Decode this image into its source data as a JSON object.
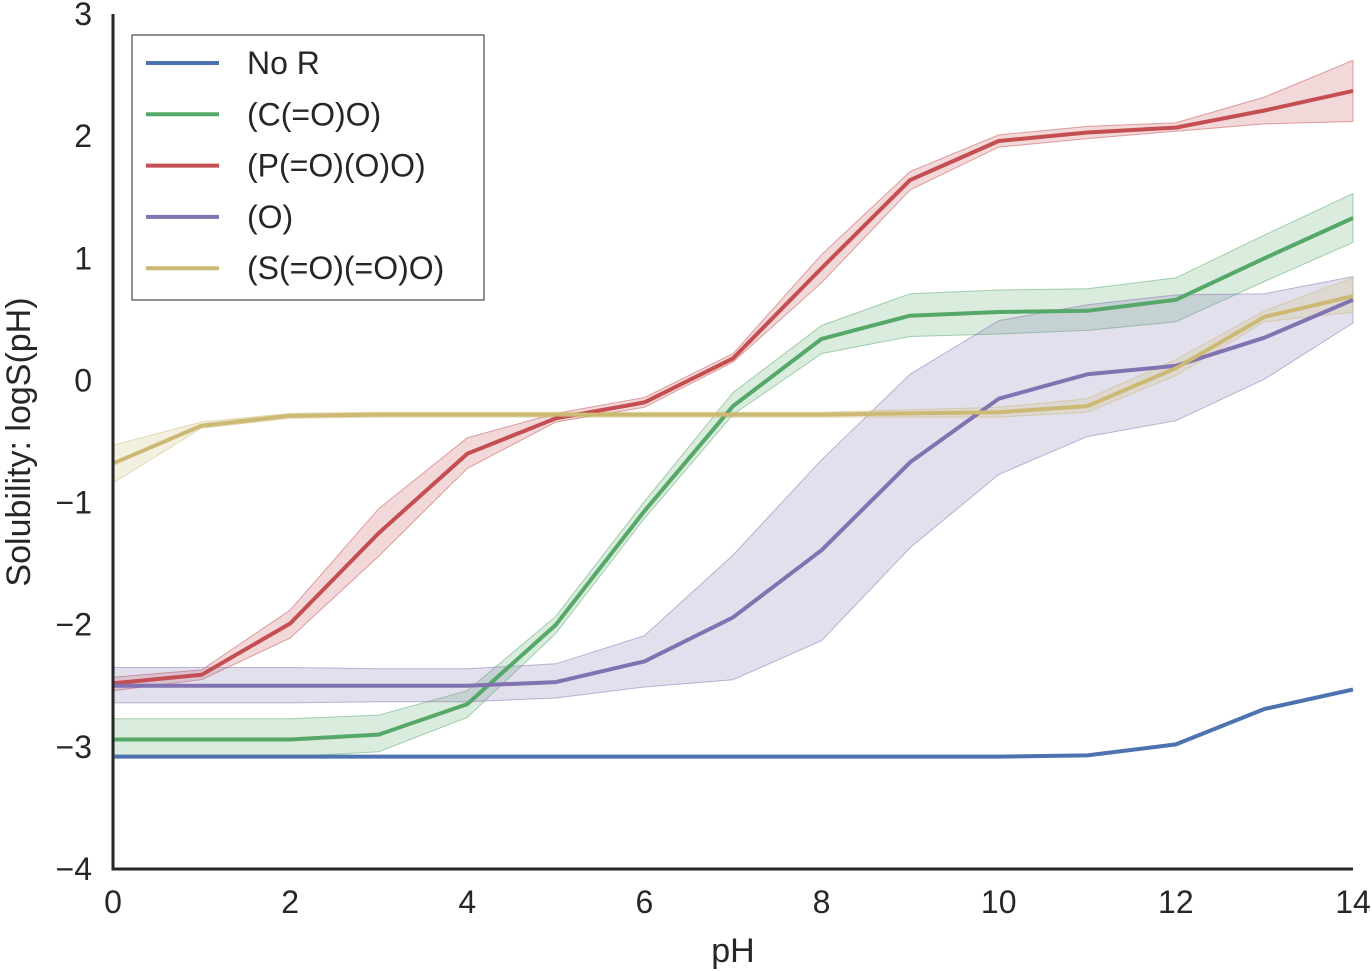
{
  "chart_data": {
    "type": "line",
    "title": "",
    "xlabel": "pH",
    "ylabel": "Solubility: logS(pH)",
    "xlim": [
      0,
      14
    ],
    "ylim": [
      -4,
      3
    ],
    "xticks": [
      0,
      2,
      4,
      6,
      8,
      10,
      12,
      14
    ],
    "yticks": [
      -4,
      -3,
      -2,
      -1,
      0,
      1,
      2,
      3
    ],
    "xtick_labels": [
      "0",
      "2",
      "4",
      "6",
      "8",
      "10",
      "12",
      "14"
    ],
    "ytick_labels": [
      "−4",
      "−3",
      "−2",
      "−1",
      "0",
      "1",
      "2",
      "3"
    ],
    "grid": false,
    "legend_position": "top-left",
    "x": [
      0,
      1,
      2,
      3,
      4,
      5,
      6,
      7,
      8,
      9,
      10,
      11,
      12,
      13,
      14
    ],
    "series": [
      {
        "name": "No R",
        "color": "#4c72b0",
        "values": [
          -3.08,
          -3.08,
          -3.08,
          -3.08,
          -3.08,
          -3.08,
          -3.08,
          -3.08,
          -3.08,
          -3.08,
          -3.08,
          -3.07,
          -2.98,
          -2.69,
          -2.53
        ]
      },
      {
        "name": "(C(=O)O)",
        "color": "#55a868",
        "values": [
          -2.94,
          -2.94,
          -2.94,
          -2.9,
          -2.65,
          -2.0,
          -1.07,
          -0.21,
          0.34,
          0.53,
          0.56,
          0.57,
          0.66,
          1.0,
          1.33
        ],
        "lower": [
          -3.08,
          -3.08,
          -3.08,
          -3.04,
          -2.76,
          -2.07,
          -1.13,
          -0.28,
          0.22,
          0.36,
          0.38,
          0.41,
          0.48,
          0.81,
          1.13
        ],
        "upper": [
          -2.77,
          -2.77,
          -2.77,
          -2.74,
          -2.54,
          -1.93,
          -0.99,
          -0.1,
          0.45,
          0.71,
          0.74,
          0.75,
          0.84,
          1.19,
          1.53
        ]
      },
      {
        "name": "(P(=O)(O)O)",
        "color": "#c44e52",
        "values": [
          -2.48,
          -2.41,
          -1.99,
          -1.25,
          -0.6,
          -0.31,
          -0.18,
          0.18,
          0.92,
          1.64,
          1.96,
          2.03,
          2.07,
          2.21,
          2.37
        ],
        "lower": [
          -2.54,
          -2.45,
          -2.11,
          -1.44,
          -0.72,
          -0.34,
          -0.22,
          0.15,
          0.8,
          1.56,
          1.91,
          1.98,
          2.04,
          2.1,
          2.12
        ],
        "upper": [
          -2.43,
          -2.37,
          -1.88,
          -1.05,
          -0.47,
          -0.27,
          -0.14,
          0.22,
          1.03,
          1.71,
          2.01,
          2.08,
          2.11,
          2.32,
          2.62
        ]
      },
      {
        "name": "(O)",
        "color": "#8172b2",
        "values": [
          -2.5,
          -2.5,
          -2.5,
          -2.5,
          -2.5,
          -2.47,
          -2.3,
          -1.94,
          -1.39,
          -0.67,
          -0.15,
          0.05,
          0.12,
          0.35,
          0.66
        ],
        "lower": [
          -2.64,
          -2.64,
          -2.64,
          -2.63,
          -2.63,
          -2.6,
          -2.51,
          -2.45,
          -2.13,
          -1.37,
          -0.77,
          -0.46,
          -0.33,
          0.01,
          0.47
        ],
        "upper": [
          -2.35,
          -2.35,
          -2.35,
          -2.36,
          -2.36,
          -2.32,
          -2.09,
          -1.43,
          -0.65,
          0.05,
          0.49,
          0.62,
          0.7,
          0.71,
          0.85
        ]
      },
      {
        "name": "(S(=O)(=O)O)",
        "color": "#ccb974",
        "values": [
          -0.68,
          -0.37,
          -0.29,
          -0.28,
          -0.28,
          -0.28,
          -0.28,
          -0.28,
          -0.28,
          -0.27,
          -0.26,
          -0.21,
          0.1,
          0.52,
          0.69
        ],
        "lower": [
          -0.84,
          -0.39,
          -0.31,
          -0.3,
          -0.3,
          -0.3,
          -0.3,
          -0.3,
          -0.3,
          -0.3,
          -0.3,
          -0.26,
          0.04,
          0.48,
          0.56
        ],
        "upper": [
          -0.53,
          -0.34,
          -0.27,
          -0.26,
          -0.26,
          -0.26,
          -0.26,
          -0.26,
          -0.26,
          -0.24,
          -0.22,
          -0.15,
          0.17,
          0.57,
          0.84
        ]
      }
    ]
  }
}
